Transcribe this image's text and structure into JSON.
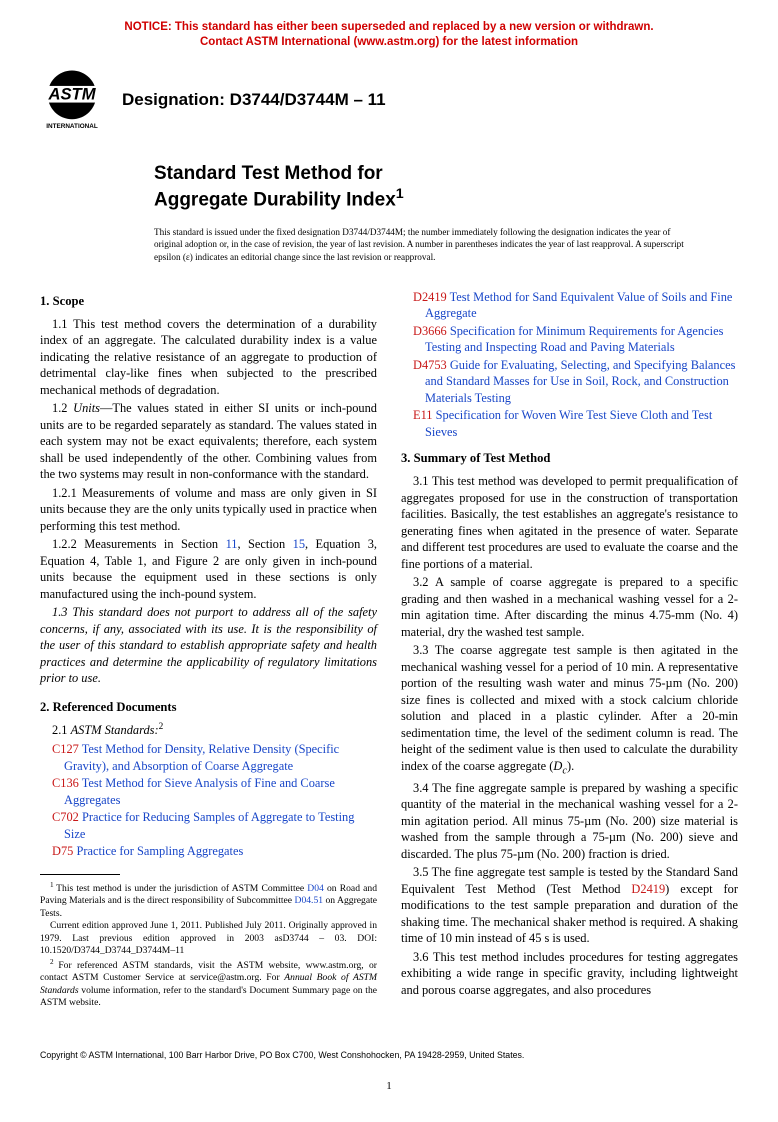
{
  "notice": {
    "line1": "NOTICE: This standard has either been superseded and replaced by a new version or withdrawn.",
    "line2": "Contact ASTM International (www.astm.org) for the latest information"
  },
  "logo_text": "ASTM",
  "logo_sub": "INTERNATIONAL",
  "designation": "Designation: D3744/D3744M – 11",
  "title_line1": "Standard Test Method for",
  "title_line2": "Aggregate Durability Index",
  "title_sup": "1",
  "issuance": "This standard is issued under the fixed designation D3744/D3744M; the number immediately following the designation indicates the year of original adoption or, in the case of revision, the year of last revision. A number in parentheses indicates the year of last reapproval. A superscript epsilon (ε) indicates an editorial change since the last revision or reapproval.",
  "scope_head": "1. Scope",
  "p11": "1.1 This test method covers the determination of a durability index of an aggregate. The calculated durability index is a value indicating the relative resistance of an aggregate to production of detrimental clay-like fines when subjected to the prescribed mechanical methods of degradation.",
  "p12_lead": "1.2 ",
  "p12_units": "Units",
  "p12_body": "—The values stated in either SI units or inch-pound units are to be regarded separately as standard. The values stated in each system may not be exact equivalents; therefore, each system shall be used independently of the other. Combining values from the two systems may result in non-conformance with the standard.",
  "p121": "1.2.1 Measurements of volume and mass are only given in SI units because they are the only units typically used in practice when performing this test method.",
  "p122_a": "1.2.2 Measurements in Section ",
  "p122_link1": "11",
  "p122_b": ", Section ",
  "p122_link2": "15",
  "p122_c": ", Equation 3, Equation 4, Table 1, and Figure 2 are only given in inch-pound units because the equipment used in these sections is only manufactured using the inch-pound system.",
  "p13": "1.3 This standard does not purport to address all of the safety concerns, if any, associated with its use. It is the responsibility of the user of this standard to establish appropriate safety and health practices and determine the applicability of regulatory limitations prior to use.",
  "refs_head": "2. Referenced Documents",
  "refs_sub_lead": "2.1 ",
  "refs_sub": "ASTM Standards:",
  "refs_sup": "2",
  "refs": [
    {
      "code": "C127",
      "text": "Test Method for Density, Relative Density (Specific Gravity), and Absorption of Coarse Aggregate"
    },
    {
      "code": "C136",
      "text": "Test Method for Sieve Analysis of Fine and Coarse Aggregates"
    },
    {
      "code": "C702",
      "text": "Practice for Reducing Samples of Aggregate to Testing Size"
    },
    {
      "code": "D75",
      "text": "Practice for Sampling Aggregates"
    },
    {
      "code": "D2419",
      "text": "Test Method for Sand Equivalent Value of Soils and Fine Aggregate"
    },
    {
      "code": "D3666",
      "text": "Specification for Minimum Requirements for Agencies Testing and Inspecting Road and Paving Materials"
    },
    {
      "code": "D4753",
      "text": "Guide for Evaluating, Selecting, and Specifying Balances and Standard Masses for Use in Soil, Rock, and Construction Materials Testing"
    },
    {
      "code": "E11",
      "text": "Specification for Woven Wire Test Sieve Cloth and Test Sieves"
    }
  ],
  "summary_head": "3. Summary of Test Method",
  "p31": "3.1 This test method was developed to permit prequalification of aggregates proposed for use in the construction of transportation facilities. Basically, the test establishes an aggregate's resistance to generating fines when agitated in the presence of water. Separate and different test procedures are used to evaluate the coarse and the fine portions of a material.",
  "p32": "3.2 A sample of coarse aggregate is prepared to a specific grading and then washed in a mechanical washing vessel for a 2-min agitation time. After discarding the minus 4.75-mm (No. 4) material, dry the washed test sample.",
  "p33_a": "3.3 The coarse aggregate test sample is then agitated in the mechanical washing vessel for a period of 10 min. A representative portion of the resulting wash water and minus 75-µm (No. 200) size fines is collected and mixed with a stock calcium chloride solution and placed in a plastic cylinder. After a 20-min sedimentation time, the level of the sediment column is read. The height of the sediment value is then used to calculate the durability index of the coarse aggregate (",
  "p33_dc": "D",
  "p33_sub": "c",
  "p33_b": ").",
  "p34": "3.4 The fine aggregate sample is prepared by washing a specific quantity of the material in the mechanical washing vessel for a 2-min agitation period. All minus 75-µm (No. 200) size material is washed from the sample through a 75-µm (No. 200) sieve and discarded. The plus 75-µm (No. 200) fraction is dried.",
  "p35_a": "3.5 The fine aggregate test sample is tested by the Standard Sand Equivalent Test Method (Test Method ",
  "p35_link": "D2419",
  "p35_b": ") except for modifications to the test sample preparation and duration of the shaking time. The mechanical shaker method is required. A shaking time of 10 min instead of 45 s is used.",
  "p36": "3.6 This test method includes procedures for testing aggregates exhibiting a wide range in specific gravity, including lightweight and porous coarse aggregates, and also procedures",
  "fn1_a": "This test method is under the jurisdiction of ASTM Committee ",
  "fn1_link1": "D04",
  "fn1_b": " on Road and Paving Materials and is the direct responsibility of Subcommittee ",
  "fn1_link2": "D04.51",
  "fn1_c": " on Aggregate Tests.",
  "fn1_d": "Current edition approved June 1, 2011. Published July 2011. Originally approved in 1979. Last previous edition approved in 2003 asD3744 – 03. DOI: 10.1520/D3744_D3744_D3744M–11",
  "fn2_a": "For referenced ASTM standards, visit the ASTM website, www.astm.org, or contact ASTM Customer Service at service@astm.org. For ",
  "fn2_i": "Annual Book of ASTM Standards",
  "fn2_b": " volume information, refer to the standard's Document Summary page on the ASTM website.",
  "copyright": "Copyright © ASTM International, 100 Barr Harbor Drive, PO Box C700, West Conshohocken, PA 19428-2959, United States.",
  "pagenum": "1",
  "colors": {
    "notice": "#d00000",
    "link": "#1846c8",
    "refcode": "#c81818"
  },
  "logo_colors": {
    "black": "#000000",
    "white": "#ffffff"
  }
}
